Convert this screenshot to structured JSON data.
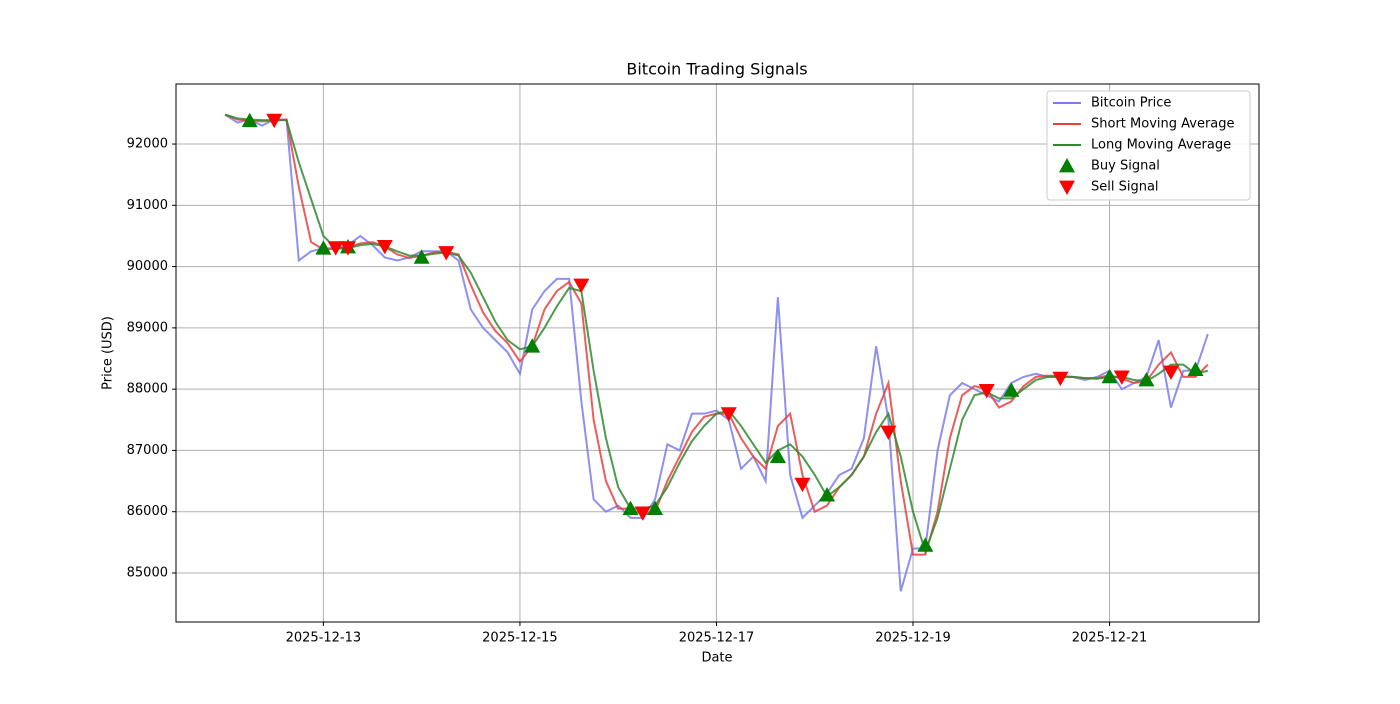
{
  "chart_data": {
    "type": "line",
    "title": "Bitcoin Trading Signals",
    "x_label": "Date",
    "y_label": "Price (USD)",
    "x": [
      "2025-12-12T00:00",
      "2025-12-12T03:00",
      "2025-12-12T06:00",
      "2025-12-12T09:00",
      "2025-12-12T12:00",
      "2025-12-12T15:00",
      "2025-12-12T18:00",
      "2025-12-12T21:00",
      "2025-12-13T00:00",
      "2025-12-13T03:00",
      "2025-12-13T06:00",
      "2025-12-13T09:00",
      "2025-12-13T12:00",
      "2025-12-13T15:00",
      "2025-12-13T18:00",
      "2025-12-13T21:00",
      "2025-12-14T00:00",
      "2025-12-14T03:00",
      "2025-12-14T06:00",
      "2025-12-14T09:00",
      "2025-12-14T12:00",
      "2025-12-14T15:00",
      "2025-12-14T18:00",
      "2025-12-14T21:00",
      "2025-12-15T00:00",
      "2025-12-15T03:00",
      "2025-12-15T06:00",
      "2025-12-15T09:00",
      "2025-12-15T12:00",
      "2025-12-15T15:00",
      "2025-12-15T18:00",
      "2025-12-15T21:00",
      "2025-12-16T00:00",
      "2025-12-16T03:00",
      "2025-12-16T06:00",
      "2025-12-16T09:00",
      "2025-12-16T12:00",
      "2025-12-16T15:00",
      "2025-12-16T18:00",
      "2025-12-16T21:00",
      "2025-12-17T00:00",
      "2025-12-17T03:00",
      "2025-12-17T06:00",
      "2025-12-17T09:00",
      "2025-12-17T12:00",
      "2025-12-17T15:00",
      "2025-12-17T18:00",
      "2025-12-17T21:00",
      "2025-12-18T00:00",
      "2025-12-18T03:00",
      "2025-12-18T06:00",
      "2025-12-18T09:00",
      "2025-12-18T12:00",
      "2025-12-18T15:00",
      "2025-12-18T18:00",
      "2025-12-18T21:00",
      "2025-12-19T00:00",
      "2025-12-19T03:00",
      "2025-12-19T06:00",
      "2025-12-19T09:00",
      "2025-12-19T12:00",
      "2025-12-19T15:00",
      "2025-12-19T18:00",
      "2025-12-19T21:00",
      "2025-12-20T00:00",
      "2025-12-20T03:00",
      "2025-12-20T06:00",
      "2025-12-20T09:00",
      "2025-12-20T12:00",
      "2025-12-20T15:00",
      "2025-12-20T18:00",
      "2025-12-20T21:00",
      "2025-12-21T00:00",
      "2025-12-21T03:00",
      "2025-12-21T06:00",
      "2025-12-21T09:00",
      "2025-12-21T12:00",
      "2025-12-21T15:00",
      "2025-12-21T18:00",
      "2025-12-21T21:00",
      "2025-12-22T00:00"
    ],
    "series": [
      {
        "name": "Bitcoin Price",
        "color": "#7b7bee",
        "values": [
          92480,
          92350,
          92400,
          92300,
          92400,
          92400,
          90100,
          90250,
          90300,
          90300,
          90350,
          90500,
          90350,
          90150,
          90100,
          90150,
          90250,
          90250,
          90250,
          90100,
          89300,
          89000,
          88800,
          88600,
          88250,
          89300,
          89600,
          89800,
          89800,
          87800,
          86200,
          86000,
          86100,
          85900,
          85900,
          86200,
          87100,
          87000,
          87600,
          87600,
          87650,
          87500,
          86700,
          86900,
          86500,
          89500,
          86600,
          85900,
          86100,
          86300,
          86600,
          86700,
          87200,
          88700,
          87500,
          84700,
          85400,
          85400,
          87000,
          87900,
          88100,
          88000,
          87900,
          87800,
          88100,
          88200,
          88250,
          88200,
          88200,
          88200,
          88150,
          88200,
          88300,
          88000,
          88100,
          88200,
          88800,
          87700,
          88300,
          88300,
          88900
        ]
      },
      {
        "name": "Short Moving Average",
        "color": "#e8403f",
        "values": [
          92480,
          92400,
          92380,
          92370,
          92380,
          92400,
          91300,
          90400,
          90280,
          90290,
          90310,
          90380,
          90400,
          90330,
          90200,
          90140,
          90180,
          90230,
          90240,
          90200,
          89700,
          89250,
          88950,
          88750,
          88450,
          88700,
          89300,
          89600,
          89750,
          89400,
          87500,
          86500,
          86050,
          86050,
          85950,
          86000,
          86500,
          86900,
          87300,
          87550,
          87600,
          87600,
          87200,
          86900,
          86700,
          87400,
          87600,
          86600,
          86000,
          86100,
          86400,
          86600,
          86900,
          87600,
          88100,
          86500,
          85300,
          85300,
          86000,
          87200,
          87900,
          88050,
          88000,
          87700,
          87800,
          88050,
          88200,
          88220,
          88210,
          88200,
          88180,
          88180,
          88230,
          88170,
          88100,
          88130,
          88400,
          88600,
          88200,
          88200,
          88400
        ]
      },
      {
        "name": "Long Moving Average",
        "color": "#2e8b2e",
        "values": [
          92480,
          92420,
          92400,
          92390,
          92390,
          92390,
          91700,
          91100,
          90500,
          90300,
          90300,
          90350,
          90370,
          90330,
          90250,
          90180,
          90180,
          90210,
          90230,
          90180,
          89900,
          89500,
          89100,
          88800,
          88650,
          88700,
          89000,
          89350,
          89650,
          89600,
          88300,
          87200,
          86400,
          86050,
          86050,
          86100,
          86400,
          86800,
          87150,
          87400,
          87600,
          87650,
          87400,
          87100,
          86800,
          87000,
          87100,
          86900,
          86600,
          86250,
          86400,
          86600,
          86900,
          87300,
          87600,
          86900,
          86000,
          85350,
          85900,
          86700,
          87500,
          87900,
          87950,
          87850,
          87850,
          88000,
          88150,
          88200,
          88200,
          88200,
          88180,
          88170,
          88200,
          88200,
          88150,
          88130,
          88250,
          88400,
          88400,
          88250,
          88300
        ]
      },
      {
        "name": "Buy Signal",
        "type": "scatter",
        "marker": "triangle-up",
        "color": "#008000",
        "x": [
          "2025-12-12T06:00",
          "2025-12-13T00:00",
          "2025-12-13T06:00",
          "2025-12-14T00:00",
          "2025-12-15T03:00",
          "2025-12-16T03:00",
          "2025-12-16T09:00",
          "2025-12-17T15:00",
          "2025-12-18T03:00",
          "2025-12-19T03:00",
          "2025-12-20T00:00",
          "2025-12-21T00:00",
          "2025-12-21T09:00",
          "2025-12-21T21:00"
        ],
        "values": [
          92380,
          90300,
          90320,
          90150,
          88700,
          86050,
          86050,
          86900,
          86270,
          85450,
          87980,
          88200,
          88150,
          88320
        ]
      },
      {
        "name": "Sell Signal",
        "type": "scatter",
        "marker": "triangle-down",
        "color": "#ff0000",
        "x": [
          "2025-12-12T12:00",
          "2025-12-13T03:00",
          "2025-12-13T06:00",
          "2025-12-13T15:00",
          "2025-12-14T06:00",
          "2025-12-15T15:00",
          "2025-12-16T06:00",
          "2025-12-17T03:00",
          "2025-12-17T21:00",
          "2025-12-18T18:00",
          "2025-12-19T18:00",
          "2025-12-20T12:00",
          "2025-12-21T03:00",
          "2025-12-21T15:00"
        ],
        "values": [
          92390,
          90310,
          90310,
          90330,
          90230,
          89700,
          85980,
          87600,
          86450,
          87300,
          87980,
          88180,
          88200,
          88280
        ]
      }
    ],
    "xlim": [
      "2025-12-11T12:00",
      "2025-12-22T12:30"
    ],
    "xticks": [
      "2025-12-13",
      "2025-12-15",
      "2025-12-17",
      "2025-12-19",
      "2025-12-21"
    ],
    "ylim": [
      84200,
      92980
    ],
    "yticks": [
      85000,
      86000,
      87000,
      88000,
      89000,
      90000,
      91000,
      92000
    ],
    "grid": true,
    "legend": "upper right"
  }
}
